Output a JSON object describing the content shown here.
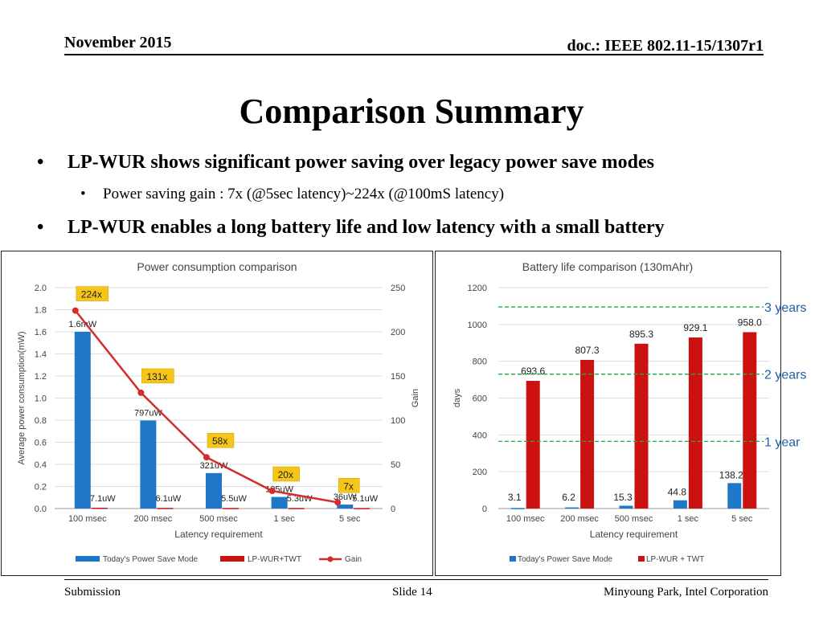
{
  "header": {
    "date": "November 2015",
    "doc": "doc.: IEEE 802.11-15/1307r1"
  },
  "title": "Comparison Summary",
  "bullets": [
    "LP-WUR shows significant power saving over legacy power save modes",
    "LP-WUR enables a long battery life and low latency with a small battery"
  ],
  "sub_bullets": [
    "Power saving gain : 7x (@5sec latency)~224x (@100mS latency)"
  ],
  "footer": {
    "left": "Submission",
    "center": "Slide 14",
    "right": "Minyoung Park, Intel Corporation"
  },
  "colors": {
    "blue": "#1f77c9",
    "red": "#cc1111",
    "gain_line": "#d62b2b",
    "gain_label_bg": "#f5c518",
    "guide": "#22aa44"
  },
  "chart_data": [
    {
      "type": "bar",
      "title": "Power consumption comparison",
      "xlabel": "Latency requirement",
      "ylabel": "Average power consumption(mW)",
      "y2label": "Gain",
      "categories": [
        "100 msec",
        "200 msec",
        "500 msec",
        "1 sec",
        "5 sec"
      ],
      "ylim": [
        0,
        2.0
      ],
      "yticks": [
        "0.0",
        "0.2",
        "0.4",
        "0.6",
        "0.8",
        "1.0",
        "1.2",
        "1.4",
        "1.6",
        "1.8",
        "2.0"
      ],
      "y2lim": [
        0,
        250
      ],
      "y2ticks": [
        "0",
        "50",
        "100",
        "150",
        "200",
        "250"
      ],
      "series": [
        {
          "name": "Today's Power Save Mode",
          "kind": "bar",
          "values": [
            1.6,
            0.797,
            0.321,
            0.105,
            0.036
          ],
          "labels": [
            "1.6mW",
            "797uW",
            "321uW",
            "105uW",
            "36uW"
          ]
        },
        {
          "name": "LP-WUR+TWT",
          "kind": "bar",
          "values": [
            0.0071,
            0.0061,
            0.0055,
            0.0053,
            0.0051
          ],
          "labels": [
            "7.1uW",
            "6.1uW",
            "5.5uW",
            "5.3uW",
            "5.1uW"
          ]
        },
        {
          "name": "Gain",
          "kind": "line",
          "axis": "right",
          "values": [
            224,
            131,
            58,
            20,
            7
          ],
          "labels": [
            "224x",
            "131x",
            "58x",
            "20x",
            "7x"
          ]
        }
      ],
      "legend": "bottom"
    },
    {
      "type": "bar",
      "title": "Battery life comparison (130mAhr)",
      "xlabel": "Latency requirement",
      "ylabel": "days",
      "categories": [
        "100 msec",
        "200 msec",
        "500 msec",
        "1 sec",
        "5 sec"
      ],
      "ylim": [
        0,
        1200
      ],
      "yticks": [
        "0",
        "200",
        "400",
        "600",
        "800",
        "1000",
        "1200"
      ],
      "series": [
        {
          "name": "Today's Power Save Mode",
          "values": [
            3.1,
            6.2,
            15.3,
            44.8,
            138.2
          ],
          "labels": [
            "3.1",
            "6.2",
            "15.3",
            "44.8",
            "138.2"
          ]
        },
        {
          "name": "LP-WUR + TWT",
          "values": [
            693.6,
            807.3,
            895.3,
            929.1,
            958.0
          ],
          "labels": [
            "693.6",
            "807.3",
            "895.3",
            "929.1",
            "958.0"
          ]
        }
      ],
      "reference_lines": [
        {
          "label": "1 year",
          "value": 365
        },
        {
          "label": "2 years",
          "value": 730
        },
        {
          "label": "3 years",
          "value": 1095
        }
      ],
      "legend": "bottom"
    }
  ]
}
